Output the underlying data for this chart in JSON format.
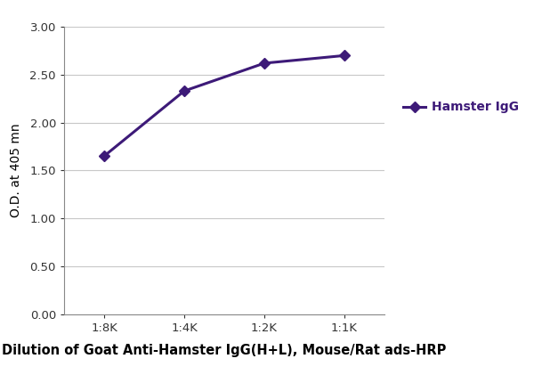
{
  "x_labels": [
    "1:8K",
    "1:4K",
    "1:2K",
    "1:1K"
  ],
  "x_values": [
    0,
    1,
    2,
    3
  ],
  "y_values": [
    1.65,
    2.33,
    2.62,
    2.7
  ],
  "line_color": "#3d1a78",
  "marker_style": "D",
  "marker_size": 6,
  "line_width": 2.2,
  "xlabel": "Dilution of Goat Anti-Hamster IgG(H+L), Mouse/Rat ads-HRP",
  "ylabel": "O.D. at 405 mn",
  "ylim": [
    0.0,
    3.0
  ],
  "yticks": [
    0.0,
    0.5,
    1.0,
    1.5,
    2.0,
    2.5,
    3.0
  ],
  "legend_label": "Hamster IgG",
  "legend_color": "#3d1a78",
  "background_color": "#ffffff",
  "grid_color": "#c8c8c8",
  "xlabel_fontsize": 10.5,
  "ylabel_fontsize": 10,
  "tick_fontsize": 9.5,
  "legend_fontsize": 10
}
